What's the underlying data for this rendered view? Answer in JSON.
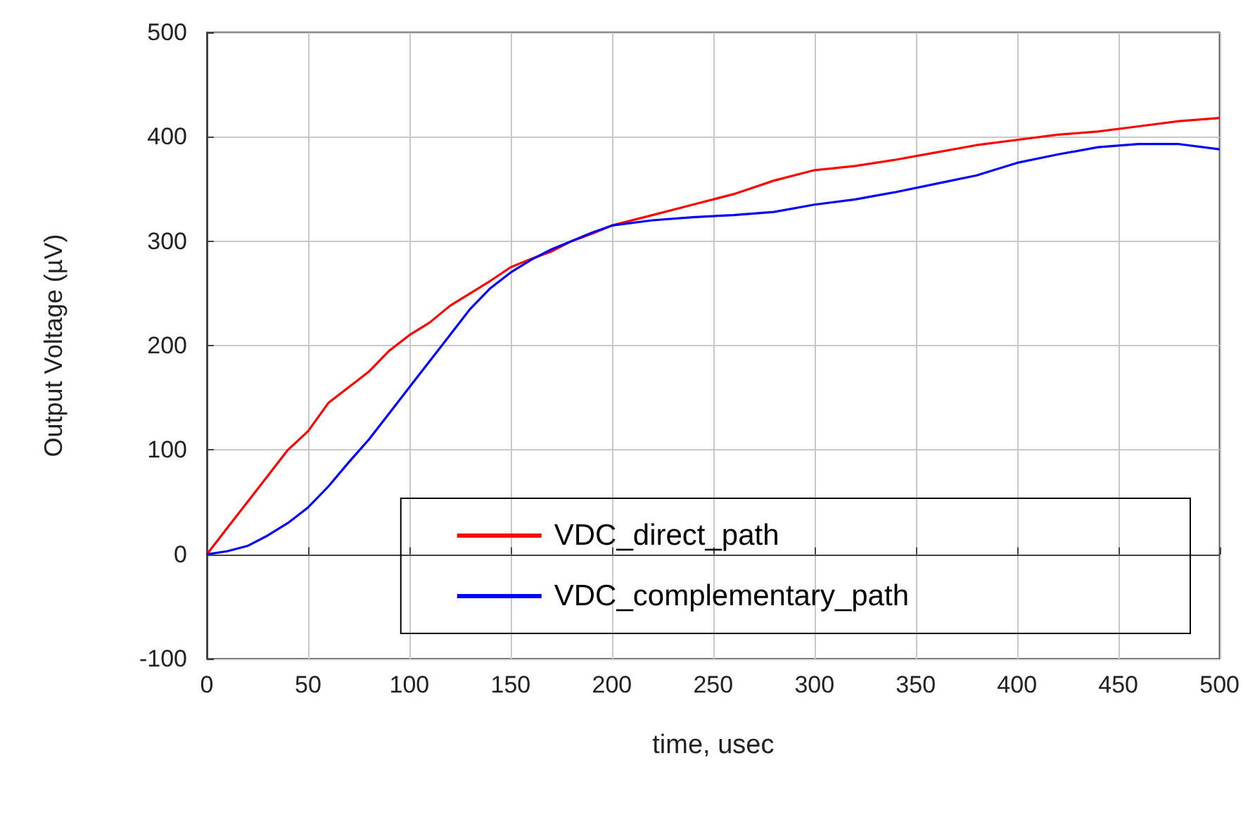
{
  "chart_data": {
    "type": "line",
    "xlabel": "time, usec",
    "ylabel": "Output Voltage (µV)",
    "xlim": [
      0,
      500
    ],
    "ylim": [
      -100,
      500
    ],
    "xticks": [
      0,
      50,
      100,
      150,
      200,
      250,
      300,
      350,
      400,
      450,
      500
    ],
    "yticks": [
      -100,
      0,
      100,
      200,
      300,
      400,
      500
    ],
    "grid": true,
    "legend": "bottom right",
    "marker": "none",
    "line_style": "solid",
    "series": [
      {
        "name": "VDC_direct_path",
        "color": "#ff0000",
        "x": [
          0,
          10,
          20,
          30,
          40,
          50,
          60,
          70,
          80,
          90,
          100,
          110,
          120,
          130,
          140,
          150,
          160,
          170,
          180,
          190,
          200,
          220,
          240,
          260,
          280,
          300,
          320,
          340,
          360,
          380,
          400,
          420,
          440,
          460,
          480,
          500
        ],
        "values": [
          0,
          25,
          50,
          75,
          100,
          118,
          145,
          160,
          175,
          195,
          210,
          222,
          238,
          250,
          262,
          275,
          283,
          290,
          300,
          307,
          315,
          325,
          335,
          345,
          358,
          368,
          372,
          378,
          385,
          392,
          397,
          402,
          405,
          410,
          415,
          418
        ]
      },
      {
        "name": "VDC_complementary_path",
        "color": "#0000ff",
        "x": [
          0,
          10,
          20,
          30,
          40,
          50,
          60,
          70,
          80,
          90,
          100,
          110,
          120,
          130,
          140,
          150,
          160,
          170,
          180,
          190,
          200,
          220,
          240,
          260,
          280,
          300,
          320,
          340,
          360,
          380,
          400,
          420,
          440,
          460,
          480,
          500
        ],
        "values": [
          0,
          3,
          8,
          18,
          30,
          45,
          65,
          88,
          110,
          135,
          160,
          185,
          210,
          235,
          255,
          270,
          282,
          292,
          300,
          308,
          315,
          320,
          323,
          325,
          328,
          335,
          340,
          347,
          355,
          363,
          375,
          383,
          390,
          393,
          393,
          388
        ]
      }
    ]
  }
}
